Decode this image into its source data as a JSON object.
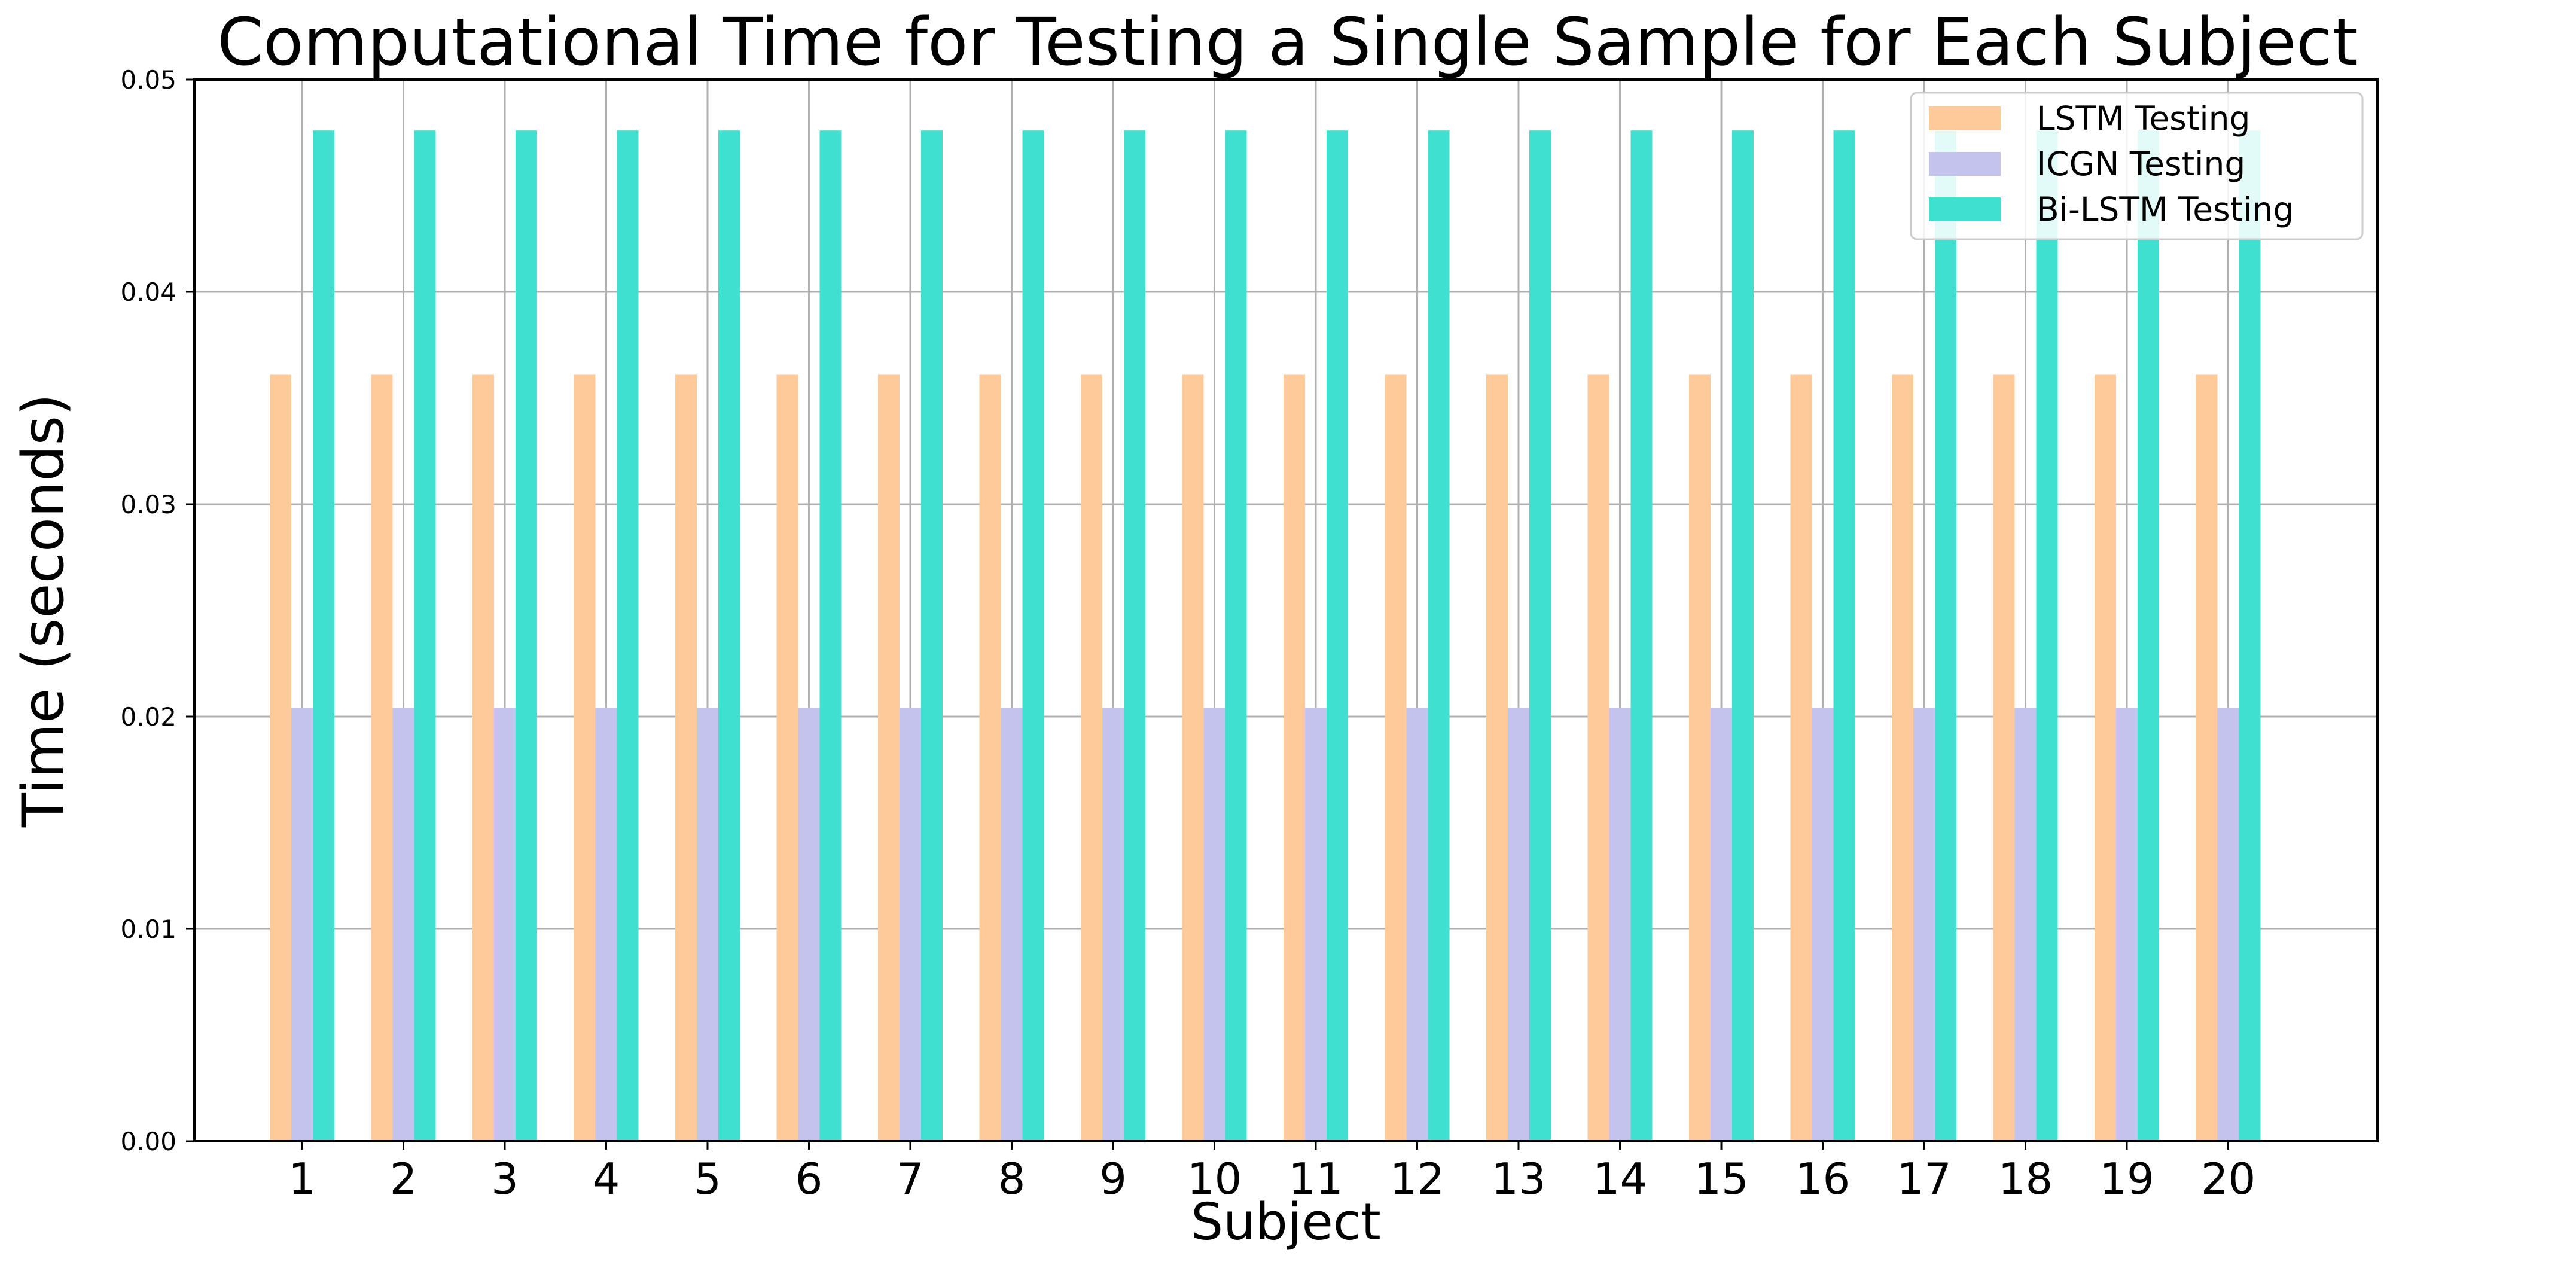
{
  "chart_data": {
    "type": "bar",
    "title": "Computational Time for Testing a Single Sample for Each Subject",
    "xlabel": "Subject",
    "ylabel": "Time (seconds)",
    "ylim": [
      0,
      0.05
    ],
    "yticks": [
      "0.00",
      "0.01",
      "0.02",
      "0.03",
      "0.04",
      "0.05"
    ],
    "categories": [
      "1",
      "2",
      "3",
      "4",
      "5",
      "6",
      "7",
      "8",
      "9",
      "10",
      "11",
      "12",
      "13",
      "14",
      "15",
      "16",
      "17",
      "18",
      "19",
      "20"
    ],
    "grid": true,
    "legend_position": "top-right",
    "series": [
      {
        "name": "LSTM Testing",
        "color": "#FFCA99",
        "values": [
          0.0361,
          0.0361,
          0.0361,
          0.0361,
          0.0361,
          0.0361,
          0.0361,
          0.0361,
          0.0361,
          0.0361,
          0.0361,
          0.0361,
          0.0361,
          0.0361,
          0.0361,
          0.0361,
          0.0361,
          0.0361,
          0.0361,
          0.0361
        ]
      },
      {
        "name": "ICGN Testing",
        "color": "#C3C3EE",
        "values": [
          0.0204,
          0.0204,
          0.0204,
          0.0204,
          0.0204,
          0.0204,
          0.0204,
          0.0204,
          0.0204,
          0.0204,
          0.0204,
          0.0204,
          0.0204,
          0.0204,
          0.0204,
          0.0204,
          0.0204,
          0.0204,
          0.0204,
          0.0204
        ]
      },
      {
        "name": "Bi-LSTM Testing",
        "color": "#40E0D0",
        "values": [
          0.0476,
          0.0476,
          0.0476,
          0.0476,
          0.0476,
          0.0476,
          0.0476,
          0.0476,
          0.0476,
          0.0476,
          0.0476,
          0.0476,
          0.0476,
          0.0476,
          0.0476,
          0.0476,
          0.0476,
          0.0476,
          0.0476,
          0.0476
        ]
      }
    ]
  }
}
